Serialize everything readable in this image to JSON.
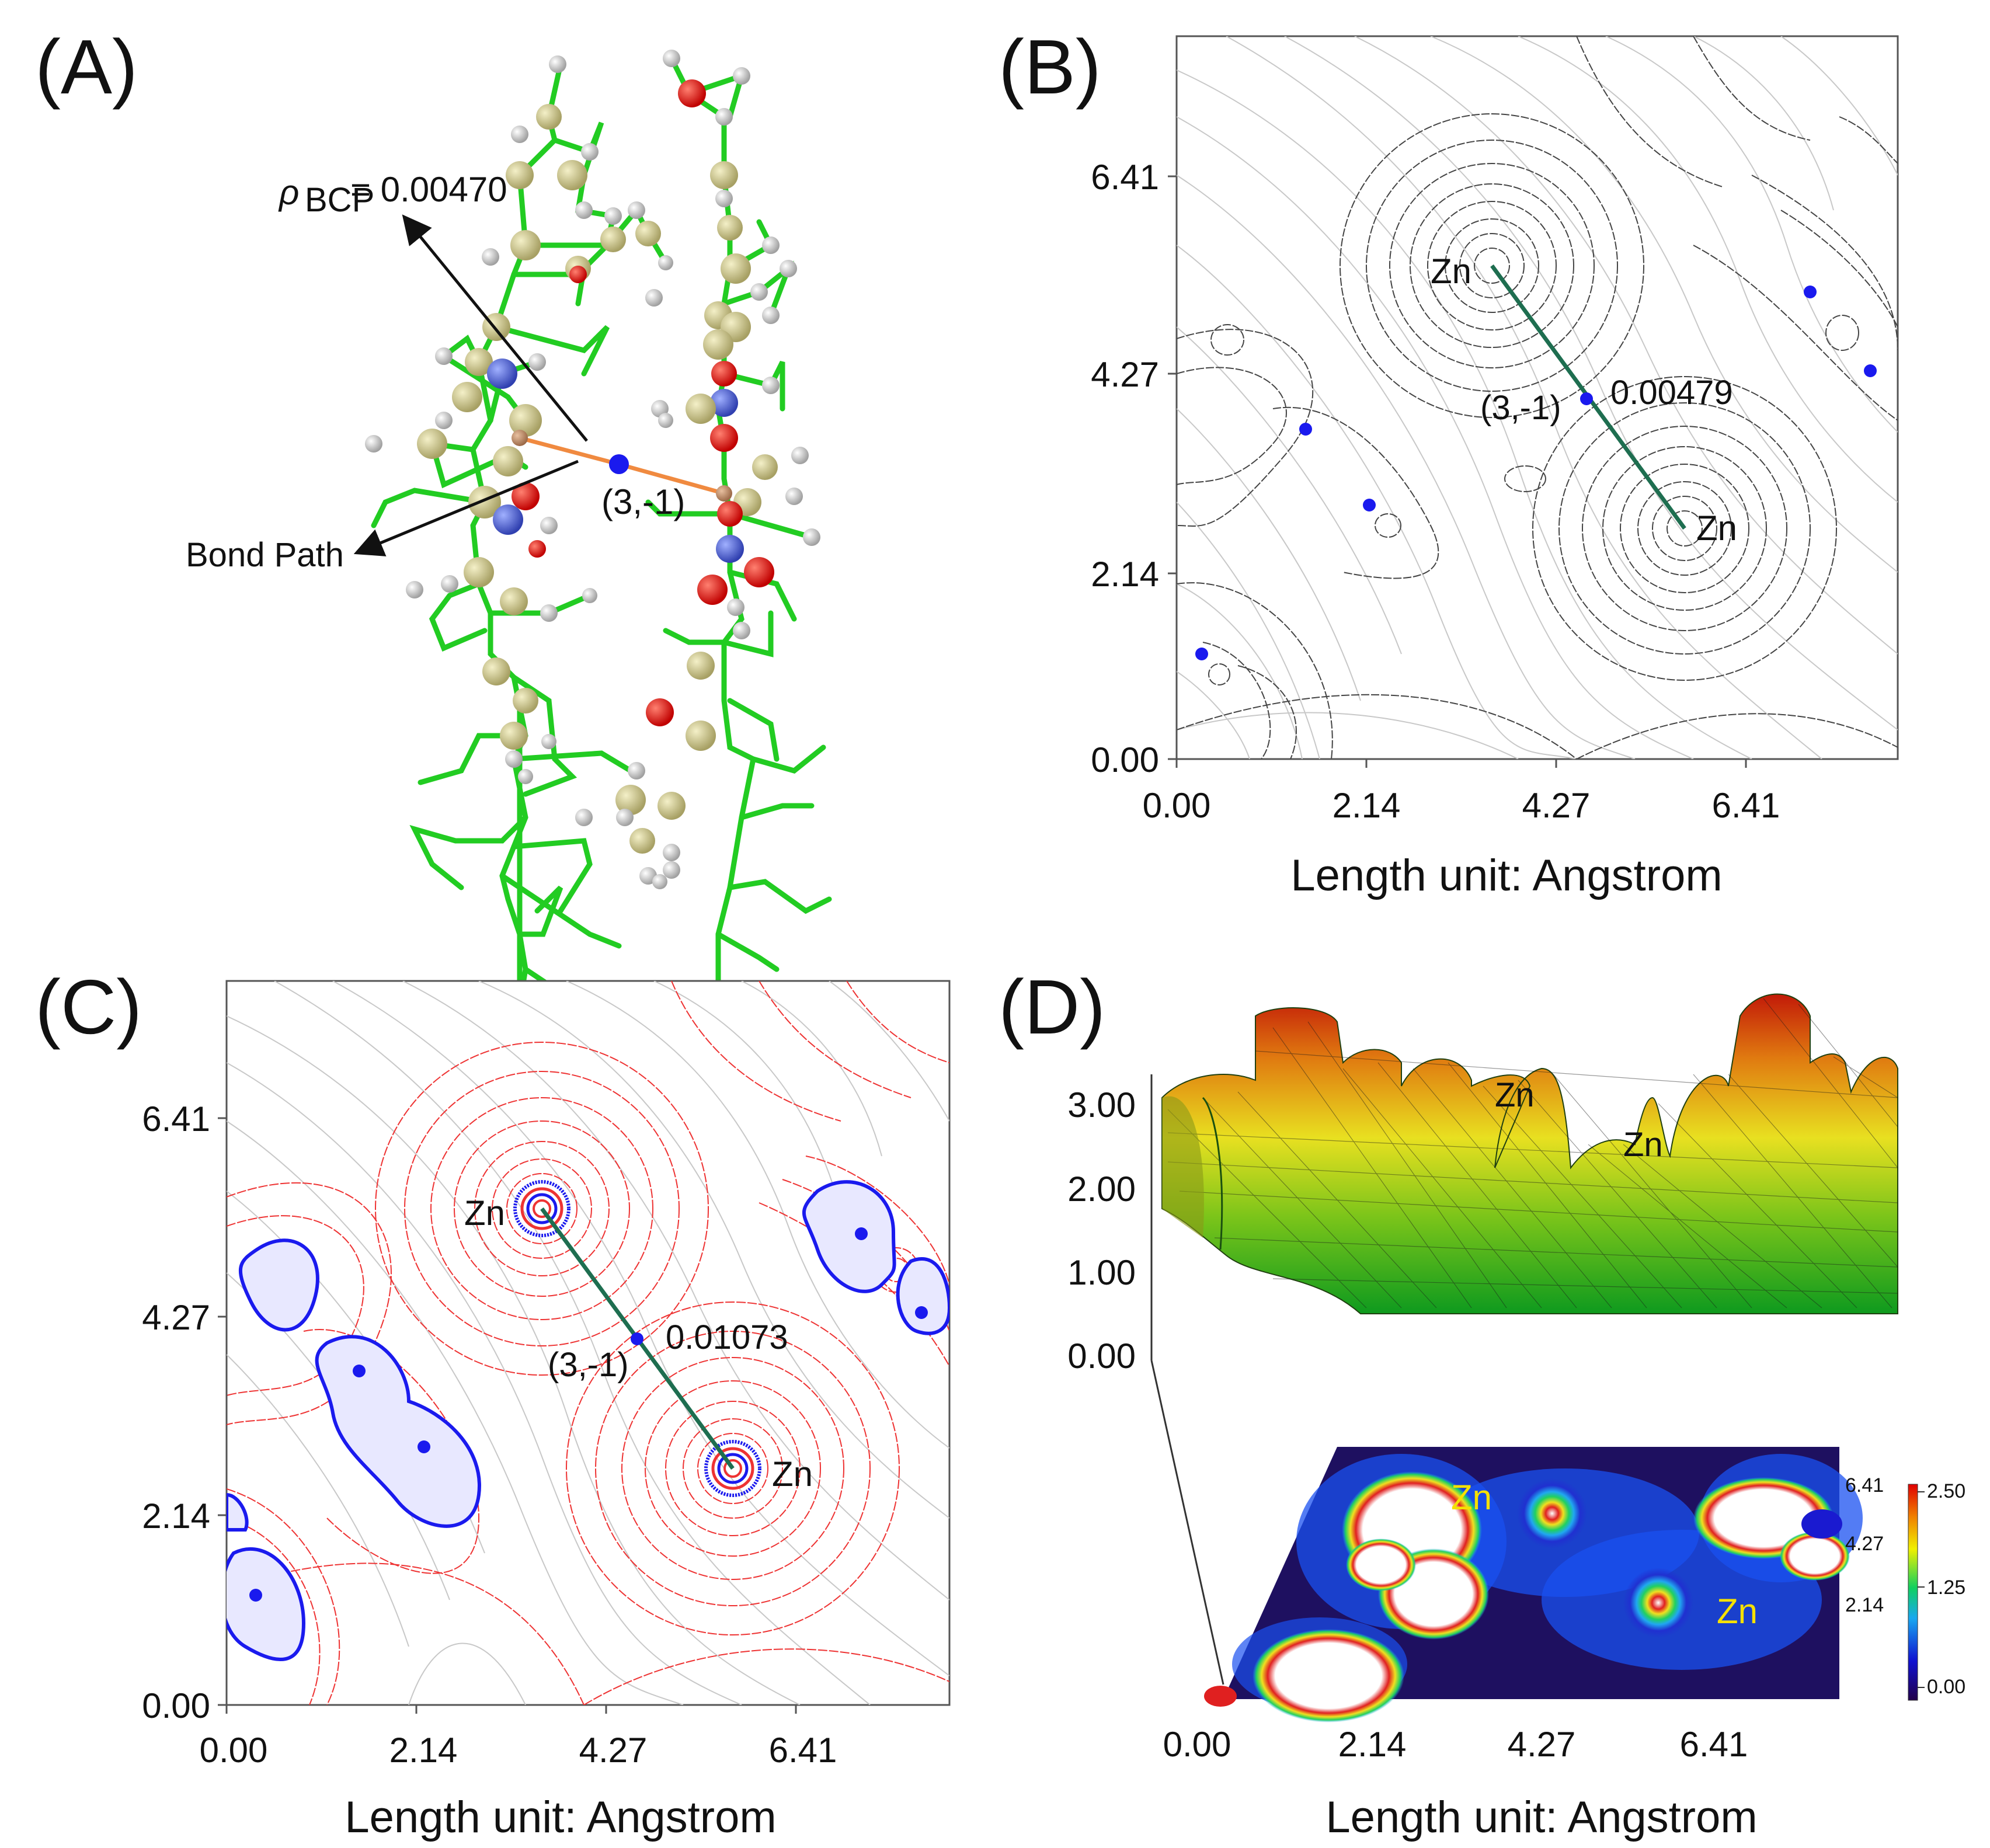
{
  "panels": {
    "A": {
      "letter": "(A)",
      "rho_symbol": "ρ",
      "rho_sub": "BCP",
      "rho_value": "= 0.00470",
      "cp_label": "(3,-1)",
      "bond_path_label": "Bond Path"
    },
    "B": {
      "letter": "(B)",
      "atom1": "Zn",
      "atom2": "Zn",
      "cp_label": "(3,-1)",
      "cp_value": "0.00479",
      "x_ticks": [
        "0.00",
        "2.14",
        "4.27",
        "6.41"
      ],
      "y_ticks": [
        "0.00",
        "2.14",
        "4.27",
        "6.41"
      ],
      "x_title": "Length unit: Angstrom"
    },
    "C": {
      "letter": "(C)",
      "atom1": "Zn",
      "atom2": "Zn",
      "cp_label": "(3,-1)",
      "cp_value": "0.01073",
      "x_ticks": [
        "0.00",
        "2.14",
        "4.27",
        "6.41"
      ],
      "y_ticks": [
        "0.00",
        "2.14",
        "4.27",
        "6.41"
      ],
      "x_title": "Length unit: Angstrom"
    },
    "D": {
      "letter": "(D)",
      "z_ticks": [
        "3.00",
        "2.00",
        "1.00",
        "0.00"
      ],
      "peak1": "Zn",
      "peak2": "Zn",
      "map_atom1": "Zn",
      "map_atom2": "Zn",
      "map_y_ticks": [
        "6.41",
        "4.27",
        "2.14"
      ],
      "colorbar_ticks": [
        "2.50",
        "1.25",
        "0.00"
      ],
      "x_ticks": [
        "0.00",
        "2.14",
        "4.27",
        "6.41"
      ],
      "x_title": "Length unit: Angstrom"
    }
  },
  "colors": {
    "bond_green": "#22cc22",
    "bond_path_orange": "#f08a40",
    "cp_blue": "#1a1aee",
    "zn_line": "#1e6e50",
    "contour_red": "#ee3333",
    "gradient_gray": "#c8c8c8"
  }
}
